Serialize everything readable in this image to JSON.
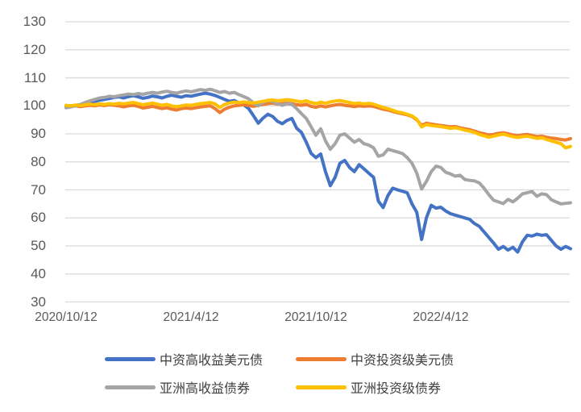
{
  "chart_data": {
    "type": "line",
    "title": "",
    "xlabel": "",
    "ylabel": "",
    "grid": "horizontal",
    "legend_position": "bottom",
    "gridline_color": "#D9D9D9",
    "axis_label_color": "#595959",
    "legend_label_color": "#404040",
    "line_width": 4,
    "y_axis": {
      "min": 30,
      "max": 130,
      "step": 10,
      "tick_labels": [
        "130",
        "120",
        "110",
        "100",
        "90",
        "80",
        "70",
        "60",
        "50",
        "40",
        "30"
      ]
    },
    "x_axis": {
      "tick_labels": [
        "2020/10/12",
        "2021/4/12",
        "2021/10/12",
        "2022/4/12"
      ],
      "tick_point_indices": [
        0,
        26,
        52,
        78
      ],
      "points_per_tick_note": "weekly data points, index 0 = 2020/10/12, index 105 = ~2022/10/17"
    },
    "series": [
      {
        "name": "中资高收益美元债",
        "color": "#4472C4",
        "values": [
          99.8,
          100.0,
          100.2,
          100.4,
          100.8,
          101.2,
          101.6,
          102.0,
          102.3,
          102.6,
          103.0,
          103.2,
          102.8,
          103.3,
          103.6,
          103.2,
          102.7,
          103.0,
          103.5,
          103.2,
          102.8,
          103.4,
          103.8,
          103.4,
          103.1,
          103.6,
          103.4,
          103.8,
          104.2,
          104.5,
          104.2,
          103.7,
          103.0,
          102.3,
          101.6,
          101.9,
          101.0,
          100.3,
          99.0,
          96.5,
          93.8,
          95.6,
          97.0,
          96.2,
          94.5,
          93.6,
          94.8,
          95.5,
          92.0,
          90.5,
          87.0,
          83.0,
          81.5,
          82.8,
          76.5,
          71.5,
          74.5,
          79.5,
          80.5,
          78.0,
          76.5,
          79.0,
          77.5,
          76.0,
          74.5,
          66.0,
          63.7,
          68.0,
          70.6,
          70.0,
          69.5,
          69.0,
          65.0,
          62.0,
          52.3,
          60.0,
          64.5,
          63.5,
          63.8,
          62.5,
          61.5,
          61.0,
          60.5,
          60.0,
          59.5,
          58.0,
          57.0,
          55.0,
          53.0,
          51.0,
          48.8,
          49.8,
          48.5,
          49.5,
          47.8,
          51.5,
          53.8,
          53.5,
          54.2,
          53.8,
          54.0,
          52.0,
          50.0,
          48.8,
          49.8,
          49.0
        ]
      },
      {
        "name": "中资投资级美元债",
        "color": "#ED7D31",
        "values": [
          100.0,
          99.8,
          100.0,
          99.7,
          100.0,
          100.2,
          100.0,
          100.3,
          100.1,
          100.4,
          100.2,
          100.0,
          99.6,
          100.0,
          100.2,
          99.8,
          99.2,
          99.5,
          99.8,
          99.4,
          99.0,
          99.3,
          98.8,
          98.5,
          99.0,
          99.2,
          99.0,
          99.3,
          99.6,
          99.8,
          100.0,
          99.0,
          97.6,
          98.8,
          99.5,
          100.0,
          100.2,
          100.4,
          100.1,
          99.8,
          100.2,
          100.5,
          100.8,
          101.0,
          100.6,
          100.8,
          101.0,
          100.8,
          100.4,
          100.2,
          100.5,
          99.8,
          99.5,
          100.0,
          99.6,
          100.0,
          100.3,
          100.5,
          100.2,
          100.0,
          99.7,
          100.0,
          99.8,
          100.0,
          99.8,
          99.3,
          98.8,
          98.5,
          98.0,
          97.5,
          97.2,
          96.8,
          96.2,
          95.0,
          93.0,
          93.8,
          93.5,
          93.2,
          93.0,
          92.8,
          92.5,
          92.6,
          92.2,
          91.8,
          91.5,
          91.0,
          90.4,
          90.0,
          89.6,
          89.8,
          90.2,
          90.4,
          90.0,
          89.6,
          89.3,
          89.6,
          89.8,
          89.4,
          89.0,
          89.2,
          88.8,
          88.5,
          88.3,
          88.0,
          87.8,
          88.3
        ]
      },
      {
        "name": "亚洲高收益债券",
        "color": "#A5A5A5",
        "values": [
          99.3,
          99.6,
          100.0,
          100.5,
          101.2,
          101.8,
          102.3,
          102.8,
          103.0,
          103.4,
          103.2,
          103.6,
          103.9,
          104.2,
          104.0,
          104.4,
          104.1,
          104.5,
          104.8,
          104.5,
          104.9,
          105.2,
          104.8,
          104.5,
          105.0,
          105.3,
          105.0,
          105.4,
          105.8,
          105.5,
          105.9,
          105.4,
          104.8,
          105.1,
          104.5,
          104.8,
          104.0,
          103.3,
          102.5,
          101.0,
          100.0,
          101.2,
          102.0,
          101.5,
          100.8,
          100.2,
          100.8,
          100.5,
          99.0,
          97.2,
          95.5,
          92.5,
          89.5,
          91.8,
          87.5,
          84.5,
          86.5,
          89.5,
          90.0,
          88.5,
          87.0,
          88.0,
          86.5,
          86.0,
          85.0,
          82.0,
          82.5,
          84.5,
          84.0,
          83.5,
          83.0,
          81.5,
          79.5,
          76.0,
          70.3,
          73.0,
          76.5,
          78.5,
          78.0,
          76.3,
          75.7,
          74.9,
          75.2,
          73.7,
          73.4,
          73.2,
          72.5,
          70.6,
          68.3,
          66.3,
          65.7,
          65.1,
          66.6,
          65.7,
          67.0,
          68.6,
          69.0,
          69.4,
          67.7,
          68.6,
          68.3,
          66.5,
          65.7,
          65.0,
          65.2,
          65.4
        ]
      },
      {
        "name": "亚洲投资级债券",
        "color": "#FFC000",
        "values": [
          100.2,
          100.0,
          100.3,
          100.1,
          100.4,
          100.6,
          100.4,
          100.7,
          100.5,
          100.8,
          100.6,
          100.9,
          100.7,
          101.0,
          101.2,
          100.8,
          100.4,
          100.7,
          101.0,
          100.6,
          100.2,
          100.5,
          100.0,
          99.7,
          100.0,
          100.3,
          100.2,
          100.5,
          100.8,
          101.0,
          101.2,
          100.7,
          99.4,
          100.5,
          101.0,
          101.3,
          101.1,
          101.4,
          101.2,
          101.0,
          101.3,
          101.6,
          101.9,
          102.1,
          101.8,
          102.0,
          102.2,
          102.0,
          101.7,
          101.4,
          101.8,
          101.2,
          100.8,
          101.3,
          100.9,
          101.4,
          101.7,
          101.9,
          101.5,
          101.2,
          100.8,
          101.0,
          100.7,
          100.9,
          100.6,
          100.0,
          99.4,
          99.0,
          98.4,
          97.8,
          97.5,
          97.0,
          96.4,
          95.2,
          92.5,
          93.3,
          93.0,
          92.8,
          92.6,
          92.3,
          92.0,
          92.2,
          91.8,
          91.3,
          91.0,
          90.5,
          89.8,
          89.3,
          88.8,
          89.2,
          89.6,
          89.9,
          89.4,
          89.0,
          88.7,
          89.0,
          89.2,
          88.8,
          88.4,
          88.6,
          88.0,
          87.5,
          87.0,
          86.5,
          85.0,
          85.5
        ]
      }
    ],
    "legend": {
      "rows": [
        [
          "中资高收益美元债",
          "中资投资级美元债"
        ],
        [
          "亚洲高收益债券",
          "亚洲投资级债券"
        ]
      ]
    }
  }
}
